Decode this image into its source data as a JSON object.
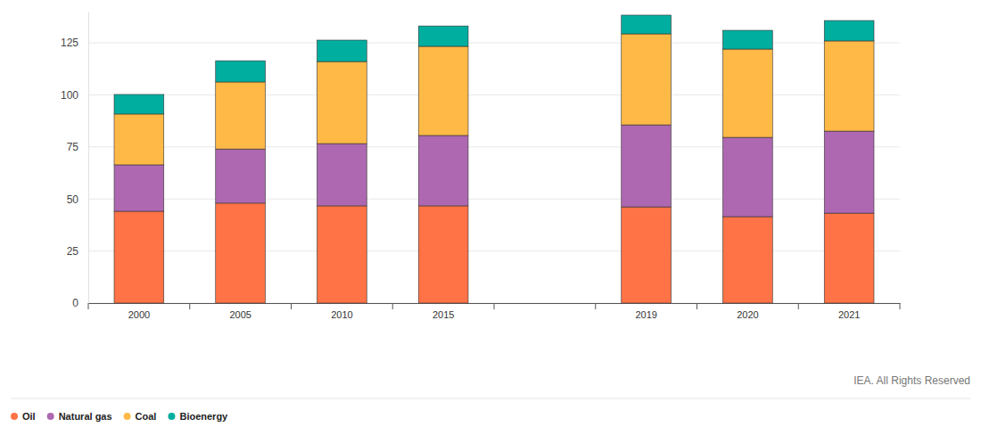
{
  "chart_data": {
    "type": "bar",
    "stacked": true,
    "grid": true,
    "legend": "bottom-left",
    "categories": [
      "2000",
      "2005",
      "2010",
      "2015",
      null,
      "2019",
      "2020",
      "2021"
    ],
    "series": [
      {
        "name": "Oil",
        "color": "#ff7347",
        "values": [
          44.1,
          48.0,
          46.7,
          46.7,
          null,
          46.2,
          41.5,
          43.2
        ]
      },
      {
        "name": "Natural gas",
        "color": "#ae68b1",
        "values": [
          22.3,
          26.0,
          29.9,
          33.8,
          null,
          39.4,
          38.1,
          39.4
        ]
      },
      {
        "name": "Coal",
        "color": "#ffb947",
        "values": [
          24.4,
          32.2,
          39.4,
          42.8,
          null,
          43.7,
          42.4,
          43.3
        ]
      },
      {
        "name": "Bioenergy",
        "color": "#00aea0",
        "values": [
          9.4,
          10.2,
          10.3,
          9.8,
          null,
          9.0,
          9.0,
          9.8
        ]
      }
    ],
    "ylim": [
      0,
      140
    ],
    "yticks": [
      0,
      25,
      50,
      75,
      100,
      125
    ],
    "annotations": [
      "IEA. All Rights Reserved"
    ]
  }
}
